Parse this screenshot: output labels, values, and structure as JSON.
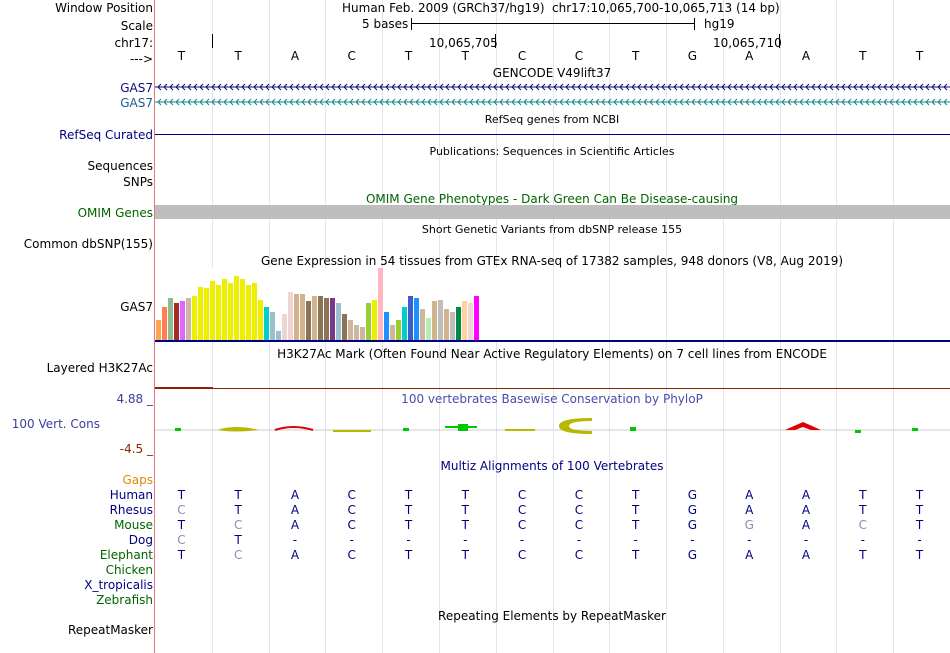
{
  "header": {
    "window_position_label": "Window Position",
    "scale_label": "Scale",
    "chrom_label": "chr17:",
    "strand_label": "--->",
    "assembly_text": "Human Feb. 2009 (GRCh37/hg19)",
    "position_text": "chr17:10,065,700-10,065,713 (14 bp)",
    "scale_text": "5 bases",
    "db_text": "hg19",
    "tick_1": "10,065,705",
    "tick_2": "10,065,710"
  },
  "sequence": [
    "T",
    "T",
    "A",
    "C",
    "T",
    "T",
    "C",
    "C",
    "T",
    "G",
    "A",
    "A",
    "T",
    "T"
  ],
  "tracks": {
    "gencode_title": "GENCODE V49lift37",
    "gas7_label_1": "GAS7",
    "gas7_label_2": "GAS7",
    "refseq_title": "RefSeq genes from NCBI",
    "refseq_label": "RefSeq Curated",
    "publications_title": "Publications: Sequences in Scientific Articles",
    "sequences_label": "Sequences",
    "snps_label": "SNPs",
    "omim_title": "OMIM Gene Phenotypes - Dark Green Can Be Disease-causing",
    "omim_label": "OMIM Genes",
    "dbsnp_title": "Short Genetic Variants from dbSNP release 155",
    "dbsnp_label": "Common dbSNP(155)",
    "gtex_title": "Gene Expression in 54 tissues from GTEx RNA-seq of 17382 samples, 948 donors (V8, Aug 2019)",
    "gtex_label": "GAS7",
    "h3k27ac_title": "H3K27Ac Mark (Often Found Near Active Regulatory Elements) on 7 cell lines from ENCODE",
    "h3k27ac_label": "Layered H3K27Ac",
    "phylop_title": "100 vertebrates Basewise Conservation by PhyloP",
    "phylop_label": "100 Vert. Cons",
    "phylop_max": "4.88 _",
    "phylop_min": "-4.5 _",
    "multiz_title": "Multiz Alignments of 100 Vertebrates",
    "gaps_label": "Gaps",
    "repeatmasker_title": "Repeating Elements by RepeatMasker",
    "repeatmasker_label": "RepeatMasker"
  },
  "gtex_values": [
    0.22,
    0.36,
    0.46,
    0.4,
    0.42,
    0.46,
    0.48,
    0.58,
    0.56,
    0.64,
    0.6,
    0.66,
    0.62,
    0.7,
    0.66,
    0.6,
    0.62,
    0.44,
    0.36,
    0.3,
    0.1,
    0.28,
    0.52,
    0.5,
    0.5,
    0.42,
    0.48,
    0.48,
    0.46,
    0.46,
    0.4,
    0.28,
    0.22,
    0.16,
    0.14,
    0.4,
    0.44,
    0.78,
    0.3,
    0.16,
    0.22,
    0.36,
    0.48,
    0.46,
    0.34,
    0.24,
    0.42,
    0.44,
    0.34,
    0.3,
    0.36,
    0.42,
    0.4,
    0.48
  ],
  "gtex_colors": [
    "#ffa54f",
    "#ff7f50",
    "#8fbc8f",
    "#a52a2a",
    "#e066ff",
    "#cdb79e",
    "#eeee00",
    "#eeee00",
    "#eeee00",
    "#eeee00",
    "#eeee00",
    "#eeee00",
    "#eeee00",
    "#eeee00",
    "#eeee00",
    "#eeee00",
    "#eeee00",
    "#eeee00",
    "#00cdcd",
    "#9ac0cd",
    "#9ac0cd",
    "#eed5d2",
    "#eed5d2",
    "#d2b48c",
    "#d2b48c",
    "#8b7355",
    "#d2b48c",
    "#8b7355",
    "#8b7355",
    "#7a378b",
    "#9ac0cd",
    "#8b7355",
    "#cdb79e",
    "#cdb79e",
    "#cdb79e",
    "#9acd32",
    "#eeee00",
    "#ffb6c1",
    "#1e90ff",
    "#cdb79e",
    "#9acd32",
    "#00cdcd",
    "#3a5fcd",
    "#1e90ff",
    "#cdb79e",
    "#b4eeb4",
    "#d2b48c",
    "#bebebe",
    "#d2b48c",
    "#bebebe",
    "#008b45",
    "#ffd39b",
    "#eed5d2",
    "#ff00ff"
  ],
  "species": [
    {
      "name": "Human",
      "color": "#000080",
      "bases": [
        "T",
        "T",
        "A",
        "C",
        "T",
        "T",
        "C",
        "C",
        "T",
        "G",
        "A",
        "A",
        "T",
        "T"
      ],
      "grey": [
        0,
        0,
        0,
        0,
        0,
        0,
        0,
        0,
        0,
        0,
        0,
        0,
        0,
        0
      ]
    },
    {
      "name": "Rhesus",
      "color": "#000080",
      "bases": [
        "C",
        "T",
        "A",
        "C",
        "T",
        "T",
        "C",
        "C",
        "T",
        "G",
        "A",
        "A",
        "T",
        "T"
      ],
      "grey": [
        1,
        0,
        0,
        0,
        0,
        0,
        0,
        0,
        0,
        0,
        0,
        0,
        0,
        0
      ]
    },
    {
      "name": "Mouse",
      "color": "#006400",
      "bases": [
        "T",
        "C",
        "A",
        "C",
        "T",
        "T",
        "C",
        "C",
        "T",
        "G",
        "G",
        "A",
        "C",
        "T"
      ],
      "grey": [
        0,
        1,
        0,
        0,
        0,
        0,
        0,
        0,
        0,
        0,
        1,
        0,
        1,
        0
      ]
    },
    {
      "name": "Dog",
      "color": "#000080",
      "bases": [
        "C",
        "T",
        "-",
        "-",
        "-",
        "-",
        "-",
        "-",
        "-",
        "-",
        "-",
        "-",
        "-",
        "-"
      ],
      "grey": [
        1,
        0,
        0,
        0,
        0,
        0,
        0,
        0,
        0,
        0,
        0,
        0,
        0,
        0
      ]
    },
    {
      "name": "Elephant",
      "color": "#006400",
      "bases": [
        "T",
        "C",
        "A",
        "C",
        "T",
        "T",
        "C",
        "C",
        "T",
        "G",
        "A",
        "A",
        "T",
        "T"
      ],
      "grey": [
        0,
        1,
        0,
        0,
        0,
        0,
        0,
        0,
        0,
        0,
        0,
        0,
        0,
        0
      ]
    },
    {
      "name": "Chicken",
      "color": "#006400",
      "bases": [],
      "grey": []
    },
    {
      "name": "X_tropicalis",
      "color": "#000080",
      "bases": [],
      "grey": []
    },
    {
      "name": "Zebrafish",
      "color": "#006400",
      "bases": [],
      "grey": []
    }
  ],
  "colors": {
    "navy": "#000080",
    "dark_blue": "#0c0c78",
    "teal": "#0e8a8a",
    "omim_green": "#006400",
    "omim_bar": "#bebebe",
    "gaps_orange": "#e08b00",
    "phylop_title": "#4b4baf",
    "phylop_label": "#3c3ca0",
    "phylop_min": "#8b2500",
    "grey_base": "#8c8cb4"
  }
}
